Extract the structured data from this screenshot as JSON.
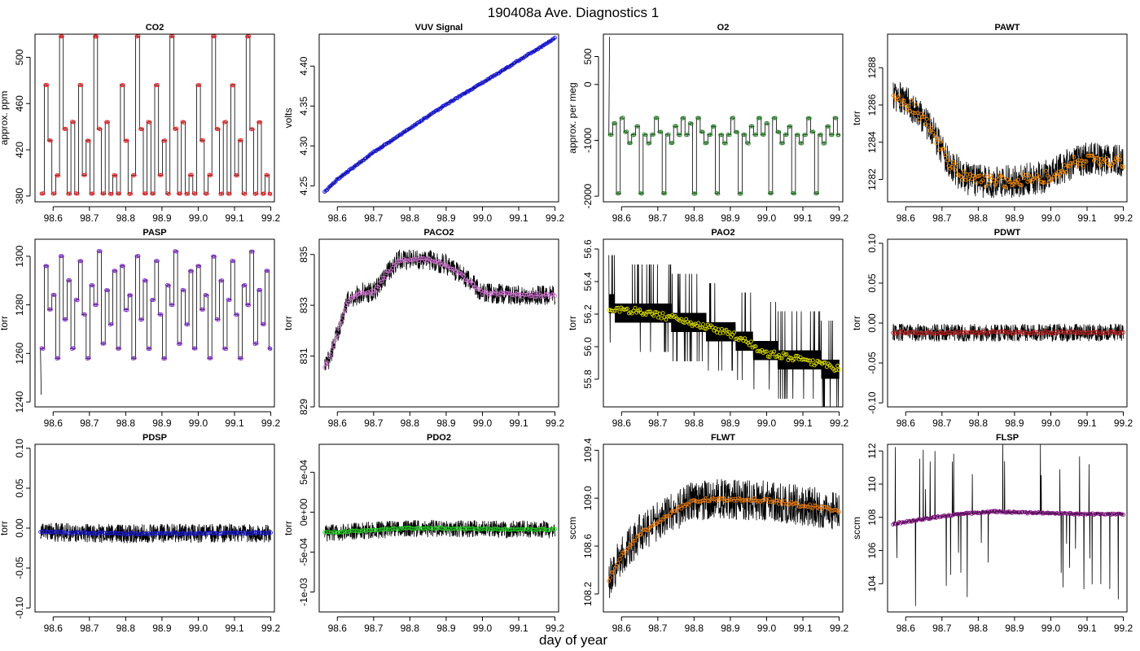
{
  "figure": {
    "title": "190408a   Ave. Diagnostics 1",
    "xlabel": "day of year"
  },
  "chart_data": [
    {
      "type": "line",
      "title": "CO2",
      "xlabel": "",
      "ylabel": "approx. ppm",
      "xlim": [
        98.55,
        99.21
      ],
      "ylim": [
        375,
        520
      ],
      "xticks": [
        98.6,
        98.7,
        98.8,
        98.9,
        99.0,
        99.1,
        99.2
      ],
      "xtick_labels": [
        "98.6",
        "98.7",
        "98.8",
        "98.9",
        "99.0",
        "99.1",
        "99.2"
      ],
      "yticks": [
        380,
        420,
        460,
        500
      ],
      "ytick_labels": [
        "380",
        "420",
        "460",
        "500"
      ],
      "line_color": "#000000",
      "marker_color": "#e8161a",
      "render": "square_wave",
      "levels": [
        382,
        476,
        428,
        382,
        398,
        518,
        438,
        382,
        444,
        382,
        476,
        398,
        428,
        382,
        518,
        438,
        382,
        444,
        382,
        398
      ],
      "step_days": 0.0105,
      "x_start": 98.565,
      "x_end": 99.2,
      "series": [
        {
          "x": [
            98.565,
            98.58,
            98.6,
            98.62,
            98.64,
            98.66,
            98.68,
            98.7,
            98.72,
            98.74
          ],
          "y": [
            428,
            476,
            382,
            438,
            518,
            382,
            444,
            476,
            382,
            398
          ]
        }
      ]
    },
    {
      "type": "line",
      "title": "VUV Signal",
      "xlabel": "",
      "ylabel": "volts",
      "xlim": [
        98.55,
        99.21
      ],
      "ylim": [
        4.23,
        4.44
      ],
      "xticks": [
        98.6,
        98.7,
        98.8,
        98.9,
        99.0,
        99.1,
        99.2
      ],
      "xtick_labels": [
        "98.6",
        "98.7",
        "98.8",
        "98.9",
        "99.0",
        "99.1",
        "99.2"
      ],
      "yticks": [
        4.25,
        4.3,
        4.35,
        4.4
      ],
      "ytick_labels": [
        "4.25",
        "4.30",
        "4.35",
        "4.40"
      ],
      "line_color": "#000000",
      "marker_color": "#1a1ae0",
      "render": "trend",
      "trend": {
        "x": [
          98.565,
          98.6,
          98.7,
          98.8,
          98.9,
          99.0,
          99.1,
          99.2
        ],
        "y": [
          4.242,
          4.258,
          4.292,
          4.322,
          4.352,
          4.379,
          4.407,
          4.435
        ]
      },
      "noise": 0.0015,
      "point_noise": 0.0008,
      "n_points": 190
    },
    {
      "type": "line",
      "title": "O2",
      "xlabel": "",
      "ylabel": "approx. per meg",
      "xlim": [
        98.55,
        99.21
      ],
      "ylim": [
        -2100,
        900
      ],
      "xticks": [
        98.6,
        98.7,
        98.8,
        98.9,
        99.0,
        99.1,
        99.2
      ],
      "xtick_labels": [
        "98.6",
        "98.7",
        "98.8",
        "98.9",
        "99.0",
        "99.1",
        "99.2"
      ],
      "yticks": [
        -2000,
        -1000,
        0,
        500
      ],
      "ytick_labels": [
        "-2000",
        "-1000",
        "0",
        "500"
      ],
      "line_color": "#000000",
      "marker_color": "#1e7a1e",
      "render": "square_wave",
      "levels": [
        -900,
        -700,
        -1950,
        -600,
        -850,
        -1050,
        -900,
        -750,
        -1950,
        -900,
        -1050,
        -900,
        -600,
        -850,
        -1950,
        -900,
        -1050,
        -750,
        -900,
        -600
      ],
      "step_days": 0.0105,
      "x_start": 98.565,
      "x_end": 99.2,
      "spike": {
        "x": 98.567,
        "y": 850
      },
      "series": [
        {
          "x": [
            98.565,
            98.6,
            98.65,
            98.7,
            98.75
          ],
          "y": [
            -900,
            -600,
            -1950,
            -850,
            -1050
          ]
        }
      ]
    },
    {
      "type": "line",
      "title": "PAWT",
      "xlabel": "",
      "ylabel": "torr",
      "xlim": [
        98.55,
        99.21
      ],
      "ylim": [
        1280.8,
        1289.8
      ],
      "xticks": [
        98.6,
        98.7,
        98.8,
        98.9,
        99.0,
        99.1,
        99.2
      ],
      "xtick_labels": [
        "98.6",
        "98.7",
        "98.8",
        "98.9",
        "99.0",
        "99.1",
        "99.2"
      ],
      "yticks": [
        1282,
        1284,
        1286,
        1288
      ],
      "ytick_labels": [
        "1282",
        "1284",
        "1286",
        "1288"
      ],
      "line_color": "#000000",
      "marker_color": "#ff8c00",
      "render": "trend",
      "trend": {
        "x": [
          98.565,
          98.62,
          98.67,
          98.72,
          98.76,
          98.8,
          98.9,
          99.0,
          99.05,
          99.1,
          99.2
        ],
        "y": [
          1286.6,
          1285.9,
          1284.8,
          1282.9,
          1282.1,
          1281.9,
          1281.9,
          1282.2,
          1282.8,
          1283.1,
          1283.0
        ]
      },
      "noise": 0.9,
      "point_noise": 0.35,
      "n_points": 150
    },
    {
      "type": "line",
      "title": "PASP",
      "xlabel": "",
      "ylabel": "torr",
      "xlim": [
        98.55,
        99.21
      ],
      "ylim": [
        1238,
        1307
      ],
      "xticks": [
        98.6,
        98.7,
        98.8,
        98.9,
        99.0,
        99.1,
        99.2
      ],
      "xtick_labels": [
        "98.6",
        "98.7",
        "98.8",
        "98.9",
        "99.0",
        "99.1",
        "99.2"
      ],
      "yticks": [
        1240,
        1260,
        1280,
        1300
      ],
      "ytick_labels": [
        "1240",
        "1260",
        "1280",
        "1300"
      ],
      "line_color": "#000000",
      "marker_color": "#7b22c8",
      "render": "square_wave",
      "levels": [
        1262,
        1296,
        1278,
        1284,
        1258,
        1300,
        1274,
        1290,
        1262,
        1282,
        1298,
        1276,
        1258,
        1288,
        1280,
        1302,
        1264,
        1286,
        1272,
        1294
      ],
      "step_days": 0.0105,
      "x_start": 98.565,
      "x_end": 99.2,
      "spike": {
        "x": 98.567,
        "y": 1243
      },
      "series": [
        {
          "x": [
            98.565,
            98.6,
            98.65,
            98.7,
            98.75
          ],
          "y": [
            1262,
            1296,
            1258,
            1300,
            1274
          ]
        }
      ]
    },
    {
      "type": "line",
      "title": "PACO2",
      "xlabel": "",
      "ylabel": "torr",
      "xlim": [
        98.55,
        99.21
      ],
      "ylim": [
        829,
        835.6
      ],
      "xticks": [
        98.6,
        98.7,
        98.8,
        98.9,
        99.0,
        99.1,
        99.2
      ],
      "xtick_labels": [
        "98.6",
        "98.7",
        "98.8",
        "98.9",
        "99.0",
        "99.1",
        "99.2"
      ],
      "yticks": [
        829,
        831,
        833,
        835
      ],
      "ytick_labels": [
        "829",
        "831",
        "833",
        "835"
      ],
      "line_color": "#000000",
      "marker_color": "#d070d0",
      "render": "trend",
      "trend": {
        "x": [
          98.565,
          98.58,
          98.6,
          98.63,
          98.67,
          98.7,
          98.74,
          98.77,
          98.85,
          98.9,
          98.95,
          99.0,
          99.1,
          99.2
        ],
        "y": [
          830.5,
          831.0,
          831.9,
          833.2,
          833.5,
          833.5,
          834.3,
          834.8,
          834.8,
          834.6,
          834.1,
          833.5,
          833.4,
          833.4
        ]
      },
      "noise": 0.4,
      "point_noise": 0.07,
      "n_points": 150
    },
    {
      "type": "line",
      "title": "PAO2",
      "xlabel": "",
      "ylabel": "torr",
      "xlim": [
        98.55,
        99.21
      ],
      "ylim": [
        55.63,
        56.66
      ],
      "xticks": [
        98.6,
        98.7,
        98.8,
        98.9,
        99.0,
        99.1,
        99.2
      ],
      "xtick_labels": [
        "98.6",
        "98.7",
        "98.8",
        "98.9",
        "99.0",
        "99.1",
        "99.2"
      ],
      "yticks": [
        55.8,
        56.0,
        56.2,
        56.4,
        56.6
      ],
      "ytick_labels": [
        "55.8",
        "56.0",
        "56.2",
        "56.4",
        "56.6"
      ],
      "line_color": "#000000",
      "marker_color": "#e6e600",
      "render": "quantized",
      "trend": {
        "x": [
          98.565,
          98.7,
          98.8,
          98.9,
          99.0,
          99.1,
          99.2
        ],
        "y": [
          56.24,
          56.2,
          56.14,
          56.08,
          55.96,
          55.92,
          55.86
        ]
      },
      "quant": 0.0575,
      "noise": 0.12,
      "point_noise": 0.02,
      "n_points": 150
    },
    {
      "type": "line",
      "title": "PDWT",
      "xlabel": "",
      "ylabel": "torr",
      "xlim": [
        98.55,
        99.21
      ],
      "ylim": [
        -0.105,
        0.105
      ],
      "xticks": [
        98.6,
        98.7,
        98.8,
        98.9,
        99.0,
        99.1,
        99.2
      ],
      "xtick_labels": [
        "98.6",
        "98.7",
        "98.8",
        "98.9",
        "99.0",
        "99.1",
        "99.2"
      ],
      "yticks": [
        -0.1,
        -0.05,
        0.0,
        0.05,
        0.1
      ],
      "ytick_labels": [
        "-0.10",
        "-0.05",
        "0.00",
        "0.05",
        "0.10"
      ],
      "line_color": "#000000",
      "marker_color": "#b22222",
      "render": "trend",
      "trend": {
        "x": [
          98.565,
          99.2
        ],
        "y": [
          -0.012,
          -0.012
        ]
      },
      "noise": 0.011,
      "point_noise": 0.0015,
      "n_points": 150
    },
    {
      "type": "line",
      "title": "PDSP",
      "xlabel": "",
      "ylabel": "torr",
      "xlim": [
        98.55,
        99.21
      ],
      "ylim": [
        -0.105,
        0.105
      ],
      "xticks": [
        98.6,
        98.7,
        98.8,
        98.9,
        99.0,
        99.1,
        99.2
      ],
      "xtick_labels": [
        "98.6",
        "98.7",
        "98.8",
        "98.9",
        "99.0",
        "99.1",
        "99.2"
      ],
      "yticks": [
        -0.1,
        -0.05,
        0.0,
        0.05,
        0.1
      ],
      "ytick_labels": [
        "-0.10",
        "-0.05",
        "0.00",
        "0.05",
        "0.10"
      ],
      "line_color": "#000000",
      "marker_color": "#1a1ad0",
      "render": "trend",
      "trend": {
        "x": [
          98.565,
          98.8,
          99.2
        ],
        "y": [
          -0.005,
          -0.007,
          -0.006
        ]
      },
      "noise": 0.012,
      "point_noise": 0.001,
      "n_points": 150
    },
    {
      "type": "line",
      "title": "PDO2",
      "xlabel": "",
      "ylabel": "torr",
      "xlim": [
        98.55,
        99.21
      ],
      "ylim": [
        -0.00125,
        0.00085
      ],
      "xticks": [
        98.6,
        98.7,
        98.8,
        98.9,
        99.0,
        99.1,
        99.2
      ],
      "xtick_labels": [
        "98.6",
        "98.7",
        "98.8",
        "98.9",
        "99.0",
        "99.1",
        "99.2"
      ],
      "yticks": [
        -0.001,
        -0.0005,
        0,
        0.0005
      ],
      "ytick_labels": [
        "-1e-03",
        "-5e-04",
        "0e+00",
        "5e-04"
      ],
      "line_color": "#000000",
      "marker_color": "#22cc22",
      "render": "trend",
      "trend": {
        "x": [
          98.565,
          98.8,
          99.2
        ],
        "y": [
          -0.00026,
          -0.0002,
          -0.00022
        ]
      },
      "noise": 0.00011,
      "point_noise": 1e-05,
      "n_points": 150
    },
    {
      "type": "line",
      "title": "FLWT",
      "xlabel": "",
      "ylabel": "sccm",
      "xlim": [
        98.55,
        99.21
      ],
      "ylim": [
        108.05,
        109.45
      ],
      "xticks": [
        98.6,
        98.7,
        98.8,
        98.9,
        99.0,
        99.1,
        99.2
      ],
      "xtick_labels": [
        "98.6",
        "98.7",
        "98.8",
        "98.9",
        "99.0",
        "99.1",
        "99.2"
      ],
      "yticks": [
        108.2,
        108.6,
        109.0,
        109.4
      ],
      "ytick_labels": [
        "108.2",
        "108.6",
        "109.0",
        "109.4"
      ],
      "line_color": "#000000",
      "marker_color": "#e87a10",
      "render": "trend",
      "trend": {
        "x": [
          98.565,
          98.6,
          98.65,
          98.7,
          98.75,
          98.8,
          98.85,
          98.9,
          99.0,
          99.1,
          99.2
        ],
        "y": [
          108.32,
          108.52,
          108.7,
          108.8,
          108.9,
          108.98,
          108.99,
          108.99,
          108.98,
          108.94,
          108.9
        ]
      },
      "noise": 0.17,
      "point_noise": 0.015,
      "n_points": 150
    },
    {
      "type": "line",
      "title": "FLSP",
      "xlabel": "",
      "ylabel": "sccm",
      "xlim": [
        98.55,
        99.21
      ],
      "ylim": [
        102.3,
        112.4
      ],
      "xticks": [
        98.6,
        98.7,
        98.8,
        98.9,
        99.0,
        99.1,
        99.2
      ],
      "xtick_labels": [
        "98.6",
        "98.7",
        "98.8",
        "98.9",
        "99.0",
        "99.1",
        "99.2"
      ],
      "yticks": [
        104,
        106,
        108,
        110,
        112
      ],
      "ytick_labels": [
        "104",
        "106",
        "108",
        "110",
        "112"
      ],
      "line_color": "#000000",
      "marker_color": "#8b1a8b",
      "render": "trend",
      "trend": {
        "x": [
          98.565,
          98.65,
          98.75,
          98.85,
          98.9,
          99.0,
          99.1,
          99.2
        ],
        "y": [
          107.6,
          107.9,
          108.2,
          108.35,
          108.3,
          108.25,
          108.2,
          108.2
        ]
      },
      "noise": 0.12,
      "point_noise": 0.05,
      "n_points": 150,
      "spikes": 34,
      "spike_amp": 3.5
    }
  ]
}
